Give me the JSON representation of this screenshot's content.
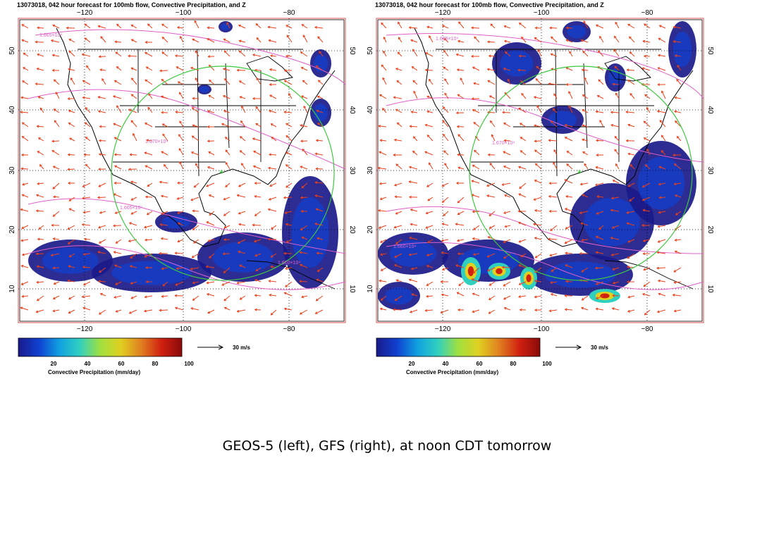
{
  "panels": [
    {
      "id": "geos5",
      "title": "13073018, 042 hour forecast for 100mb flow, Convective Precipitation, and Z",
      "top_lon_labels": [
        "−120",
        "−100",
        "−80"
      ],
      "bottom_lon_labels": [
        "−120",
        "−100",
        "−80"
      ],
      "lat_labels": [
        "50",
        "40",
        "30",
        "20",
        "10"
      ],
      "contour_labels": [
        "1.665×10⁴",
        "1.670×10⁴",
        "1.665×10⁴",
        "1.660×10⁴"
      ],
      "colorbar_ticks": [
        "20",
        "40",
        "60",
        "80",
        "100"
      ],
      "colorbar_title": "Convective Precipitation (mm/day)",
      "reference_vector_label": "30 m/s"
    },
    {
      "id": "gfs",
      "title": "13073018, 042 hour forecast for 100mb flow, Convective Precipitation, and Z",
      "top_lon_labels": [
        "−120",
        "−100",
        "−80"
      ],
      "bottom_lon_labels": [
        "−120",
        "−100",
        "−80"
      ],
      "lat_labels": [
        "50",
        "40",
        "30",
        "20",
        "10"
      ],
      "contour_labels": [
        "1.665×10⁴",
        "1.670×10⁴",
        "1.660×10⁴"
      ],
      "colorbar_ticks": [
        "20",
        "40",
        "60",
        "80",
        "100"
      ],
      "colorbar_title": "Convective Precipitation (mm/day)",
      "reference_vector_label": "30 m/s"
    }
  ],
  "caption": "GEOS-5 (left), GFS (right), at noon CDT tomorrow",
  "colors": {
    "wind_arrows": "#e8401a",
    "geopotential_contours": "#e060c8",
    "circle": "#3ec83e",
    "marker": "#22cc22",
    "map_lines": "#000000",
    "grid": "#000000",
    "frame": "#e07070"
  },
  "colorbar_colors": [
    "#1a1a8a",
    "#1040d0",
    "#10a0e0",
    "#30d0c0",
    "#a0e040",
    "#e0d020",
    "#e08020",
    "#d02010",
    "#8a0a0a"
  ]
}
